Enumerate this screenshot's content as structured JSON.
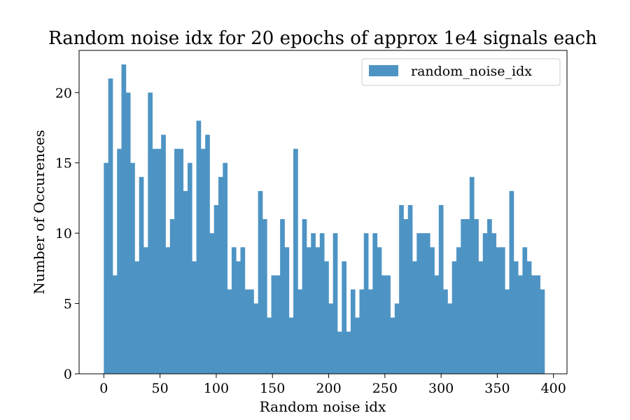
{
  "chart_data": {
    "type": "bar",
    "title": "Random noise idx for 20 epochs of approx 1e4 signals each",
    "xlabel": "Random noise idx",
    "ylabel": "Number of Occurences",
    "xlim": [
      -22,
      412
    ],
    "ylim": [
      0,
      23
    ],
    "xticks": [
      0,
      50,
      100,
      150,
      200,
      250,
      300,
      350,
      400
    ],
    "yticks": [
      0,
      5,
      10,
      15,
      20
    ],
    "grid": false,
    "legend": {
      "position": "top-right",
      "entries": [
        "random_noise_idx"
      ]
    },
    "bar_color": "#4d94c4",
    "bins": {
      "start": 0,
      "width": 3.92,
      "counts": [
        15,
        21,
        7,
        16,
        22,
        20,
        15,
        8,
        14,
        9,
        20,
        16,
        16,
        17,
        9,
        11,
        16,
        16,
        13,
        15,
        8,
        18,
        16,
        17,
        10,
        12,
        14,
        15,
        6,
        9,
        8,
        9,
        6,
        6,
        5,
        13,
        11,
        4,
        7,
        7,
        11,
        9,
        4,
        16,
        6,
        11,
        9,
        10,
        9,
        10,
        8,
        5,
        10,
        3,
        8,
        3,
        6,
        4,
        6,
        10,
        6,
        10,
        9,
        7,
        7,
        4,
        5,
        12,
        11,
        12,
        8,
        10,
        10,
        10,
        9,
        7,
        12,
        6,
        5,
        8,
        9,
        11,
        11,
        14,
        11,
        8,
        10,
        11,
        10,
        9,
        9,
        6,
        13,
        8,
        7,
        9,
        8,
        7,
        7,
        6
      ]
    }
  }
}
